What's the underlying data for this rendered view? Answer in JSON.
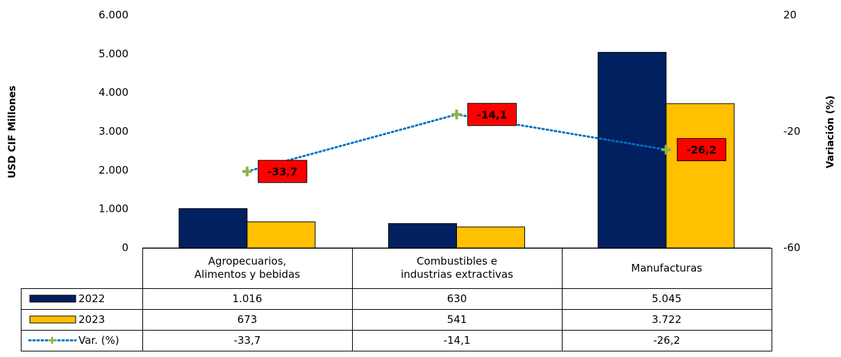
{
  "chart_data": {
    "type": "bar",
    "categories": [
      "Agropecuarios,\nAlimentos y bebidas",
      "Combustibles e\nindustrias extractivas",
      "Manufacturas"
    ],
    "series": [
      {
        "name": "2022",
        "color": "#002060",
        "values": [
          1016,
          630,
          5045
        ],
        "value_labels": [
          "1.016",
          "630",
          "5.045"
        ]
      },
      {
        "name": "2023",
        "color": "#ffc000",
        "values": [
          673,
          541,
          3722
        ],
        "value_labels": [
          "673",
          "541",
          "3.722"
        ]
      },
      {
        "name": "Var. (%)",
        "type": "line",
        "axis": "y2",
        "color": "#0070c0",
        "marker_color": "#8db04a",
        "label_color": "#ff0000",
        "values": [
          -33.7,
          -14.1,
          -26.2
        ],
        "value_labels": [
          "-33,7",
          "-14,1",
          "-26,2"
        ]
      }
    ],
    "ylabel": "USD CIF Millones",
    "y2label": "Variación (%)",
    "ylim": [
      0,
      6000
    ],
    "yticks": [
      0,
      {
        "value": 1000,
        "label": "1.000"
      },
      {
        "value": 2000,
        "label": "2.000"
      },
      {
        "value": 3000,
        "label": "3.000"
      },
      {
        "value": 4000,
        "label": "4.000"
      },
      {
        "value": 5000,
        "label": "5.000"
      },
      {
        "value": 6000,
        "label": "6.000"
      }
    ],
    "y2lim": [
      -60,
      20
    ],
    "y2ticks": [
      -60,
      -20,
      20
    ],
    "data_table": true
  }
}
